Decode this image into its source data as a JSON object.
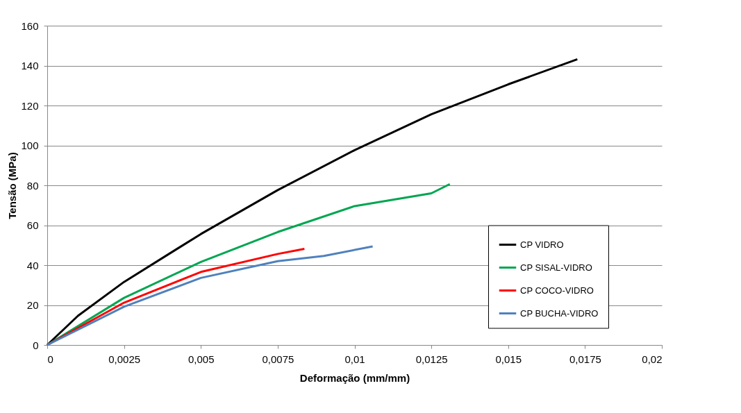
{
  "chart_data": {
    "type": "line",
    "xlabel": "Deformação (mm/mm)",
    "ylabel": "Tensão (MPa)",
    "xlim": [
      0,
      0.02
    ],
    "ylim": [
      0,
      160
    ],
    "xticks": [
      {
        "value": 0,
        "label": "0"
      },
      {
        "value": 0.0025,
        "label": "0,0025"
      },
      {
        "value": 0.005,
        "label": "0,005"
      },
      {
        "value": 0.0075,
        "label": "0,0075"
      },
      {
        "value": 0.01,
        "label": "0,01"
      },
      {
        "value": 0.0125,
        "label": "0,0125"
      },
      {
        "value": 0.015,
        "label": "0,015"
      },
      {
        "value": 0.0175,
        "label": "0,0175"
      },
      {
        "value": 0.02,
        "label": "0,02"
      }
    ],
    "yticks": [
      0,
      20,
      40,
      60,
      80,
      100,
      120,
      140,
      160
    ],
    "grid": "y",
    "legend": "right",
    "line_style": "solid",
    "marker": "none",
    "series": [
      {
        "name": "CP VIDRO",
        "color": "#000000",
        "x": [
          0,
          0.001,
          0.0025,
          0.005,
          0.0075,
          0.01,
          0.0125,
          0.015,
          0.01725
        ],
        "values": [
          0,
          14.6,
          31.6,
          55.6,
          77.6,
          97.6,
          115.6,
          130.6,
          143.2
        ]
      },
      {
        "name": "CP SISAL-VIDRO",
        "color": "#00a651",
        "x": [
          0,
          0.0025,
          0.005,
          0.0075,
          0.01,
          0.0125,
          0.0131
        ],
        "values": [
          0,
          23.6,
          41.6,
          56.6,
          69.6,
          76,
          80.6
        ]
      },
      {
        "name": "CP COCO-VIDRO",
        "color": "#ff0000",
        "x": [
          0,
          0.0025,
          0.005,
          0.0075,
          0.00837
        ],
        "values": [
          0,
          21.2,
          36.6,
          45.6,
          48.2
        ]
      },
      {
        "name": "CP BUCHA-VIDRO",
        "color": "#4f81bd",
        "x": [
          0,
          0.0025,
          0.005,
          0.0075,
          0.009,
          0.01059
        ],
        "values": [
          0,
          19.2,
          33.6,
          42,
          44.6,
          49.4
        ]
      }
    ]
  }
}
